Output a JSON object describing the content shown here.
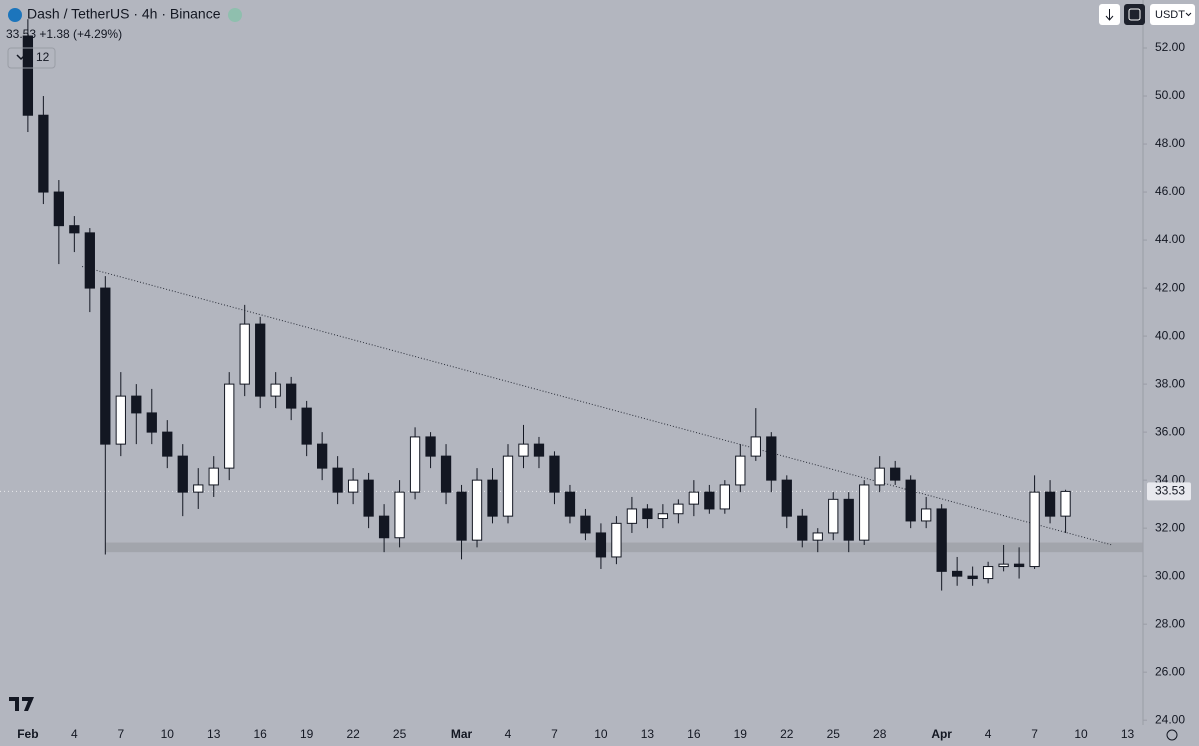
{
  "chart_data": {
    "type": "candlestick",
    "title": "Dash / TetherUS · 4h · Binance",
    "subtitle": "33.53 +1.38 (+4.29%)",
    "indicator_count": "12",
    "currency": "USDT",
    "x": [
      0,
      1,
      2,
      3,
      4,
      5,
      6,
      7,
      8,
      9,
      10,
      11,
      12,
      13,
      14,
      15,
      16,
      17,
      18,
      19,
      20,
      21,
      22,
      23,
      24,
      25,
      26,
      27,
      28,
      29,
      30,
      31,
      32,
      33,
      34,
      35,
      36,
      37,
      38,
      39,
      40,
      41,
      42,
      43,
      44,
      45,
      46,
      47,
      48,
      49,
      50,
      51,
      52,
      53,
      54,
      55,
      56,
      57,
      58,
      59,
      60,
      61,
      62,
      63,
      64,
      65,
      66,
      67
    ],
    "open": [
      52.5,
      49.2,
      46,
      44.6,
      44.3,
      42,
      35.5,
      37.5,
      36.8,
      36,
      35,
      33.5,
      33.8,
      34.5,
      38,
      40.5,
      37.5,
      38,
      37,
      35.5,
      34.5,
      33.5,
      34,
      32.5,
      31.6,
      33.5,
      35.8,
      35,
      33.5,
      31.5,
      34,
      32.5,
      35,
      35.5,
      35,
      33.5,
      32.5,
      31.8,
      30.8,
      32.2,
      32.8,
      32.4,
      32.6,
      33,
      33.5,
      32.8,
      33.8,
      35,
      35.8,
      34,
      32.5,
      31.5,
      31.8,
      33.2,
      31.5,
      33.8,
      34.5,
      34,
      32.3,
      32.8,
      30.2,
      30,
      29.9,
      30.4,
      30.5,
      30.4,
      33.5,
      32.5
    ],
    "high": [
      53.2,
      50,
      46.5,
      45,
      44.5,
      42.5,
      38.5,
      38,
      37.8,
      36.5,
      35.5,
      34.5,
      35,
      38.5,
      41.3,
      40.8,
      38.5,
      38.3,
      37.3,
      36,
      35,
      34.5,
      34.3,
      33,
      34,
      36.2,
      36,
      35.5,
      33.8,
      34.5,
      34.5,
      35.5,
      36.3,
      35.8,
      35.2,
      33.8,
      32.8,
      32.2,
      32.5,
      33.3,
      33,
      33,
      33.2,
      34,
      33.8,
      34,
      35.5,
      37,
      36,
      34.2,
      32.8,
      32,
      33.5,
      33.5,
      34,
      35,
      34.8,
      34.2,
      33.3,
      33,
      30.8,
      30.4,
      30.6,
      31.3,
      31.2,
      34.2,
      34,
      33.6
    ],
    "low": [
      48.5,
      45.5,
      43,
      43.5,
      41,
      30.9,
      35,
      35.5,
      35.5,
      34.5,
      32.5,
      32.8,
      33.3,
      34,
      37.5,
      37,
      37,
      36.5,
      35,
      34,
      33,
      33,
      32,
      31,
      31.2,
      33.2,
      34.5,
      33,
      30.7,
      31.2,
      32.2,
      32.2,
      34.5,
      34.5,
      33,
      32.2,
      31.5,
      30.3,
      30.5,
      31.8,
      32,
      32,
      32.2,
      32.5,
      32.6,
      32.6,
      33.5,
      34.8,
      33.5,
      32,
      31.2,
      31,
      31.5,
      31,
      31.3,
      33.5,
      33.8,
      32,
      32,
      29.4,
      29.6,
      29.6,
      29.7,
      30.2,
      29.9,
      30.3,
      32.2,
      31.8
    ],
    "close": [
      49.2,
      46,
      44.6,
      44.3,
      42,
      35.5,
      37.5,
      36.8,
      36,
      35,
      33.5,
      33.8,
      34.5,
      38,
      40.5,
      37.5,
      38,
      37,
      35.5,
      34.5,
      33.5,
      34,
      32.5,
      31.6,
      33.5,
      35.8,
      35,
      33.5,
      31.5,
      34,
      32.5,
      35,
      35.5,
      35,
      33.5,
      32.5,
      31.8,
      30.8,
      32.2,
      32.8,
      32.4,
      32.6,
      33,
      33.5,
      32.8,
      33.8,
      35,
      35.8,
      34,
      32.5,
      31.5,
      31.8,
      33.2,
      31.5,
      33.8,
      34.5,
      34,
      32.3,
      32.8,
      30.2,
      30,
      29.9,
      30.4,
      30.5,
      30.4,
      33.5,
      32.5,
      33.53
    ],
    "up_color": "#ffffff",
    "down_color": "#131722",
    "last_price": 33.53,
    "xlim": [
      -1.8,
      72
    ],
    "xticks": [
      {
        "value": 0,
        "label": "Feb"
      },
      {
        "value": 3,
        "label": "4"
      },
      {
        "value": 6,
        "label": "7"
      },
      {
        "value": 9,
        "label": "10"
      },
      {
        "value": 12,
        "label": "13"
      },
      {
        "value": 15,
        "label": "16"
      },
      {
        "value": 18,
        "label": "19"
      },
      {
        "value": 21,
        "label": "22"
      },
      {
        "value": 24,
        "label": "25"
      },
      {
        "value": 28,
        "label": "Mar"
      },
      {
        "value": 31,
        "label": "4"
      },
      {
        "value": 34,
        "label": "7"
      },
      {
        "value": 37,
        "label": "10"
      },
      {
        "value": 40,
        "label": "13"
      },
      {
        "value": 43,
        "label": "16"
      },
      {
        "value": 46,
        "label": "19"
      },
      {
        "value": 49,
        "label": "22"
      },
      {
        "value": 52,
        "label": "25"
      },
      {
        "value": 55,
        "label": "28"
      },
      {
        "value": 59,
        "label": "Apr"
      },
      {
        "value": 62,
        "label": "4"
      },
      {
        "value": 65,
        "label": "7"
      },
      {
        "value": 68,
        "label": "10"
      },
      {
        "value": 71,
        "label": "13"
      }
    ],
    "ylim": [
      23.8,
      54
    ],
    "yticks": [
      {
        "value": 24,
        "label": "24.00"
      },
      {
        "value": 26,
        "label": "26.00"
      },
      {
        "value": 28,
        "label": "28.00"
      },
      {
        "value": 30,
        "label": "30.00"
      },
      {
        "value": 32,
        "label": "32.00"
      },
      {
        "value": 34,
        "label": "34.00"
      },
      {
        "value": 36,
        "label": "36.00"
      },
      {
        "value": 38,
        "label": "38.00"
      },
      {
        "value": 40,
        "label": "40.00"
      },
      {
        "value": 42,
        "label": "42.00"
      },
      {
        "value": 44,
        "label": "44.00"
      },
      {
        "value": 46,
        "label": "46.00"
      },
      {
        "value": 48,
        "label": "48.00"
      },
      {
        "value": 50,
        "label": "50.00"
      },
      {
        "value": 52,
        "label": "52.00"
      }
    ],
    "trendline": {
      "x": [
        3.5,
        70
      ],
      "y": [
        42.9,
        31.3
      ]
    },
    "support_zone": {
      "x": [
        5,
        72
      ],
      "y": [
        31.0,
        31.4
      ]
    }
  }
}
